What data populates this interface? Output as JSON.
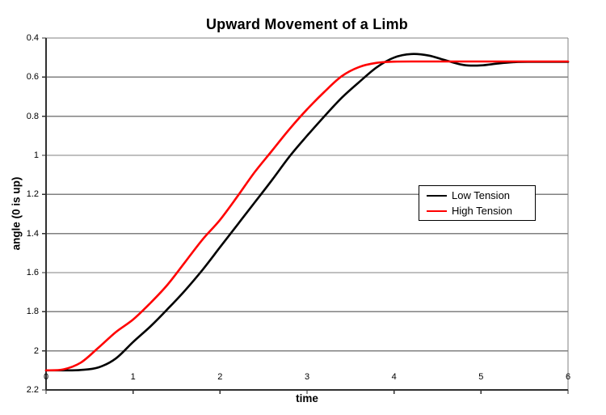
{
  "figure": {
    "title": "Upward Movement of a Limb",
    "x_axis": {
      "label": "time",
      "tick_labels": [
        "0",
        "1",
        "2",
        "3",
        "4",
        "5",
        "6"
      ]
    },
    "y_axis": {
      "label": "angle (0 is up)",
      "tick_labels": [
        "0.4",
        "0.6",
        "0.8",
        "1",
        "1.2",
        "1.4",
        "1.6",
        "1.8",
        "2",
        "2.2"
      ],
      "reversed": true
    }
  },
  "chart_data": {
    "type": "line",
    "title": "Upward Movement of a Limb",
    "xlabel": "time",
    "ylabel": "angle (0 is up)",
    "xlim": [
      0,
      6
    ],
    "ylim": [
      0.4,
      2.2
    ],
    "y_axis_reversed": true,
    "grid": "horizontal-only",
    "legend_position": "center-right",
    "x_ticks": [
      0,
      1,
      2,
      3,
      4,
      5,
      6
    ],
    "y_ticks": [
      0.4,
      0.6,
      0.8,
      1.0,
      1.2,
      1.4,
      1.6,
      1.8,
      2.0,
      2.2
    ],
    "x": [
      0,
      0.2,
      0.4,
      0.6,
      0.8,
      1,
      1.2,
      1.4,
      1.6,
      1.8,
      2,
      2.2,
      2.4,
      2.6,
      2.8,
      3,
      3.2,
      3.4,
      3.6,
      3.8,
      4,
      4.2,
      4.4,
      4.6,
      4.8,
      5,
      5.2,
      5.4,
      5.6,
      5.8,
      6
    ],
    "series": [
      {
        "name": "Low Tension",
        "color": "#000000",
        "values": [
          2.1,
          2.1,
          2.098,
          2.085,
          2.04,
          1.955,
          1.875,
          1.785,
          1.69,
          1.585,
          1.47,
          1.355,
          1.24,
          1.125,
          1.005,
          0.9,
          0.8,
          0.705,
          0.625,
          0.55,
          0.5,
          0.482,
          0.49,
          0.515,
          0.538,
          0.54,
          0.53,
          0.523,
          0.522,
          0.522,
          0.522
        ]
      },
      {
        "name": "High Tension",
        "color": "#ff0000",
        "values": [
          2.1,
          2.095,
          2.06,
          1.985,
          1.905,
          1.84,
          1.755,
          1.66,
          1.545,
          1.43,
          1.33,
          1.21,
          1.085,
          0.975,
          0.865,
          0.765,
          0.675,
          0.595,
          0.548,
          0.527,
          0.521,
          0.52,
          0.52,
          0.52,
          0.52,
          0.52,
          0.52,
          0.52,
          0.52,
          0.52,
          0.52
        ]
      }
    ]
  },
  "colors": {
    "background": "#ffffff",
    "gridline": "#808080",
    "plot_border": "#808080",
    "axis_line": "#303030",
    "low_tension": "#000000",
    "high_tension": "#ff0000",
    "text": "#000000"
  }
}
